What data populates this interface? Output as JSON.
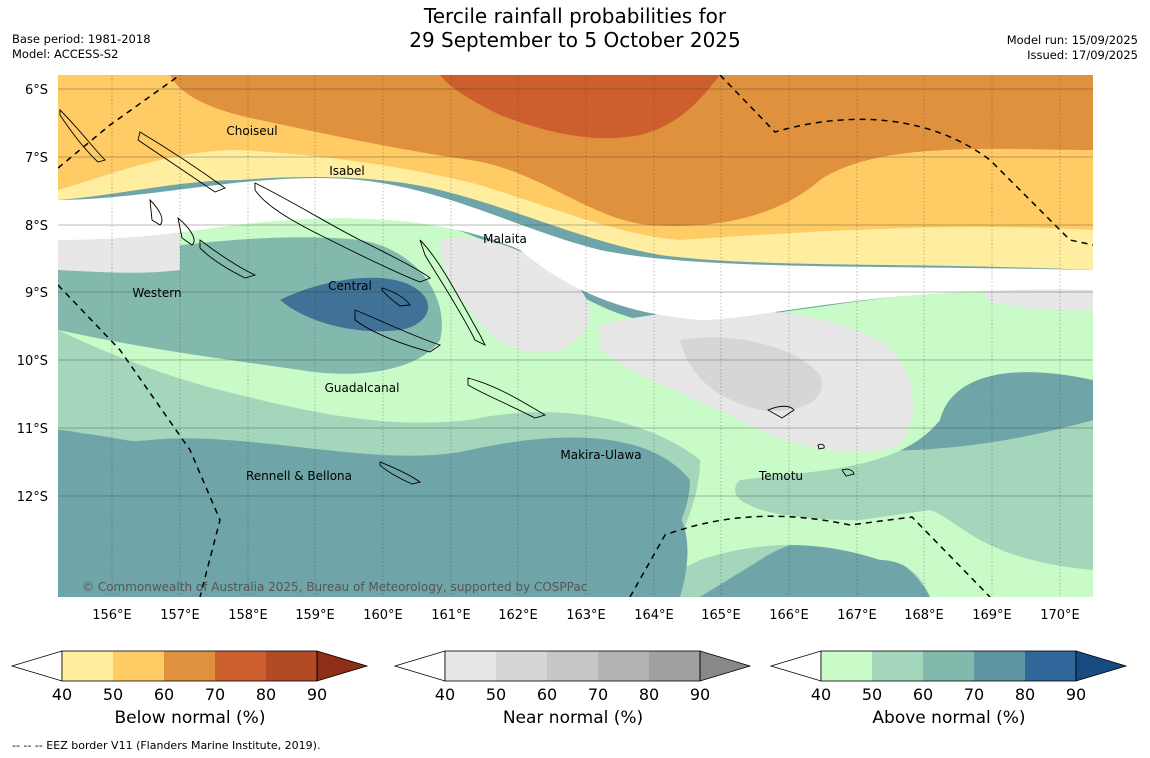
{
  "title_line1": "Tercile rainfall probabilities for",
  "title_line2": "29 September to 5 October 2025",
  "meta_left": {
    "base_period": "Base period: 1981-2018",
    "model": "Model: ACCESS-S2"
  },
  "meta_right": {
    "model_run": "Model run: 15/09/2025",
    "issued": "Issued: 17/09/2025"
  },
  "lat_labels": [
    "6°S",
    "7°S",
    "8°S",
    "9°S",
    "10°S",
    "11°S",
    "12°S"
  ],
  "lon_labels": [
    "156°E",
    "157°E",
    "158°E",
    "159°E",
    "160°E",
    "161°E",
    "162°E",
    "163°E",
    "164°E",
    "165°E",
    "166°E",
    "167°E",
    "168°E",
    "169°E",
    "170°E"
  ],
  "place_labels": {
    "choiseul": "Choiseul",
    "isabel": "Isabel",
    "malaita": "Malaita",
    "central": "Central",
    "western": "Western",
    "guadalcanal": "Guadalcanal",
    "rennell": "Rennell & Bellona",
    "makira": "Makira-Ulawa",
    "temotu": "Temotu"
  },
  "copyright": "© Commonwealth of Australia 2025, Bureau of Meteorology, supported by COSPPac",
  "legends": [
    {
      "title": "Below normal (%)",
      "ticks": [
        "40",
        "50",
        "60",
        "70",
        "80",
        "90"
      ],
      "colors": [
        "#ffeda0",
        "#fecb65",
        "#e0913e",
        "#cd5f2e",
        "#b34a26",
        "#8e2e16"
      ]
    },
    {
      "title": "Near normal (%)",
      "ticks": [
        "40",
        "50",
        "60",
        "70",
        "80",
        "90"
      ],
      "colors": [
        "#e7e7e7",
        "#d6d6d6",
        "#c6c6c6",
        "#b4b4b4",
        "#a0a0a0",
        "#888888"
      ]
    },
    {
      "title": "Above normal (%)",
      "ticks": [
        "40",
        "50",
        "60",
        "70",
        "80",
        "90"
      ],
      "colors": [
        "#c9fbc8",
        "#a3d6ba",
        "#83b9ad",
        "#5e96a1",
        "#2f679a",
        "#164c80"
      ]
    }
  ],
  "footnote": "--  --  -- EEZ border V11 (Flanders Marine Institute, 2019)."
}
